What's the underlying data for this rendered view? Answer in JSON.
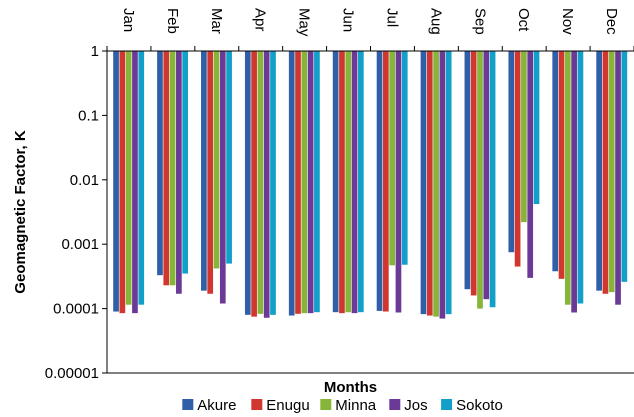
{
  "chart_data": {
    "type": "bar",
    "orientation": "inverted-log",
    "title": "",
    "xlabel": "Months",
    "ylabel": "Geomagnetic Factor, K",
    "y_scale": "log",
    "ylim": [
      1e-05,
      1
    ],
    "y_ticks": [
      "1",
      "0.1",
      "0.01",
      "0.001",
      "0.0001",
      "0.00001"
    ],
    "y_tick_values": [
      1,
      0.1,
      0.01,
      0.001,
      0.0001,
      1e-05
    ],
    "bar_baseline": 1,
    "grid": false,
    "legend_position": "bottom",
    "categories": [
      "Jan",
      "Feb",
      "Mar",
      "Apr",
      "May",
      "Jun",
      "Jul",
      "Aug",
      "Sep",
      "Oct",
      "Nov",
      "Dec"
    ],
    "series": [
      {
        "name": "Akure",
        "color": "#2F5FA8",
        "values": [
          9e-05,
          0.00033,
          0.00019,
          8e-05,
          7.8e-05,
          8.8e-05,
          9.2e-05,
          8.2e-05,
          0.0002,
          0.00075,
          0.00038,
          0.00019
        ]
      },
      {
        "name": "Enugu",
        "color": "#D2372F",
        "values": [
          8.5e-05,
          0.00023,
          0.00017,
          7.5e-05,
          8.3e-05,
          8.5e-05,
          9e-05,
          7.8e-05,
          0.00016,
          0.00045,
          0.00029,
          0.00017
        ]
      },
      {
        "name": "Minna",
        "color": "#86B539",
        "values": [
          0.000115,
          0.00023,
          0.00042,
          8.3e-05,
          8.5e-05,
          8.8e-05,
          0.00047,
          7.5e-05,
          0.0001,
          0.0022,
          0.000115,
          0.00018
        ]
      },
      {
        "name": "Jos",
        "color": "#6B3A96",
        "values": [
          8.5e-05,
          0.00017,
          0.00012,
          7.2e-05,
          8.5e-05,
          8.5e-05,
          8.7e-05,
          7e-05,
          0.00014,
          0.0003,
          8.7e-05,
          0.000115
        ]
      },
      {
        "name": "Sokoto",
        "color": "#12A0C9",
        "values": [
          0.000115,
          0.00035,
          0.0005,
          8e-05,
          8.8e-05,
          8.8e-05,
          0.00048,
          8.2e-05,
          0.000105,
          0.0042,
          0.00012,
          0.00026
        ]
      }
    ]
  }
}
